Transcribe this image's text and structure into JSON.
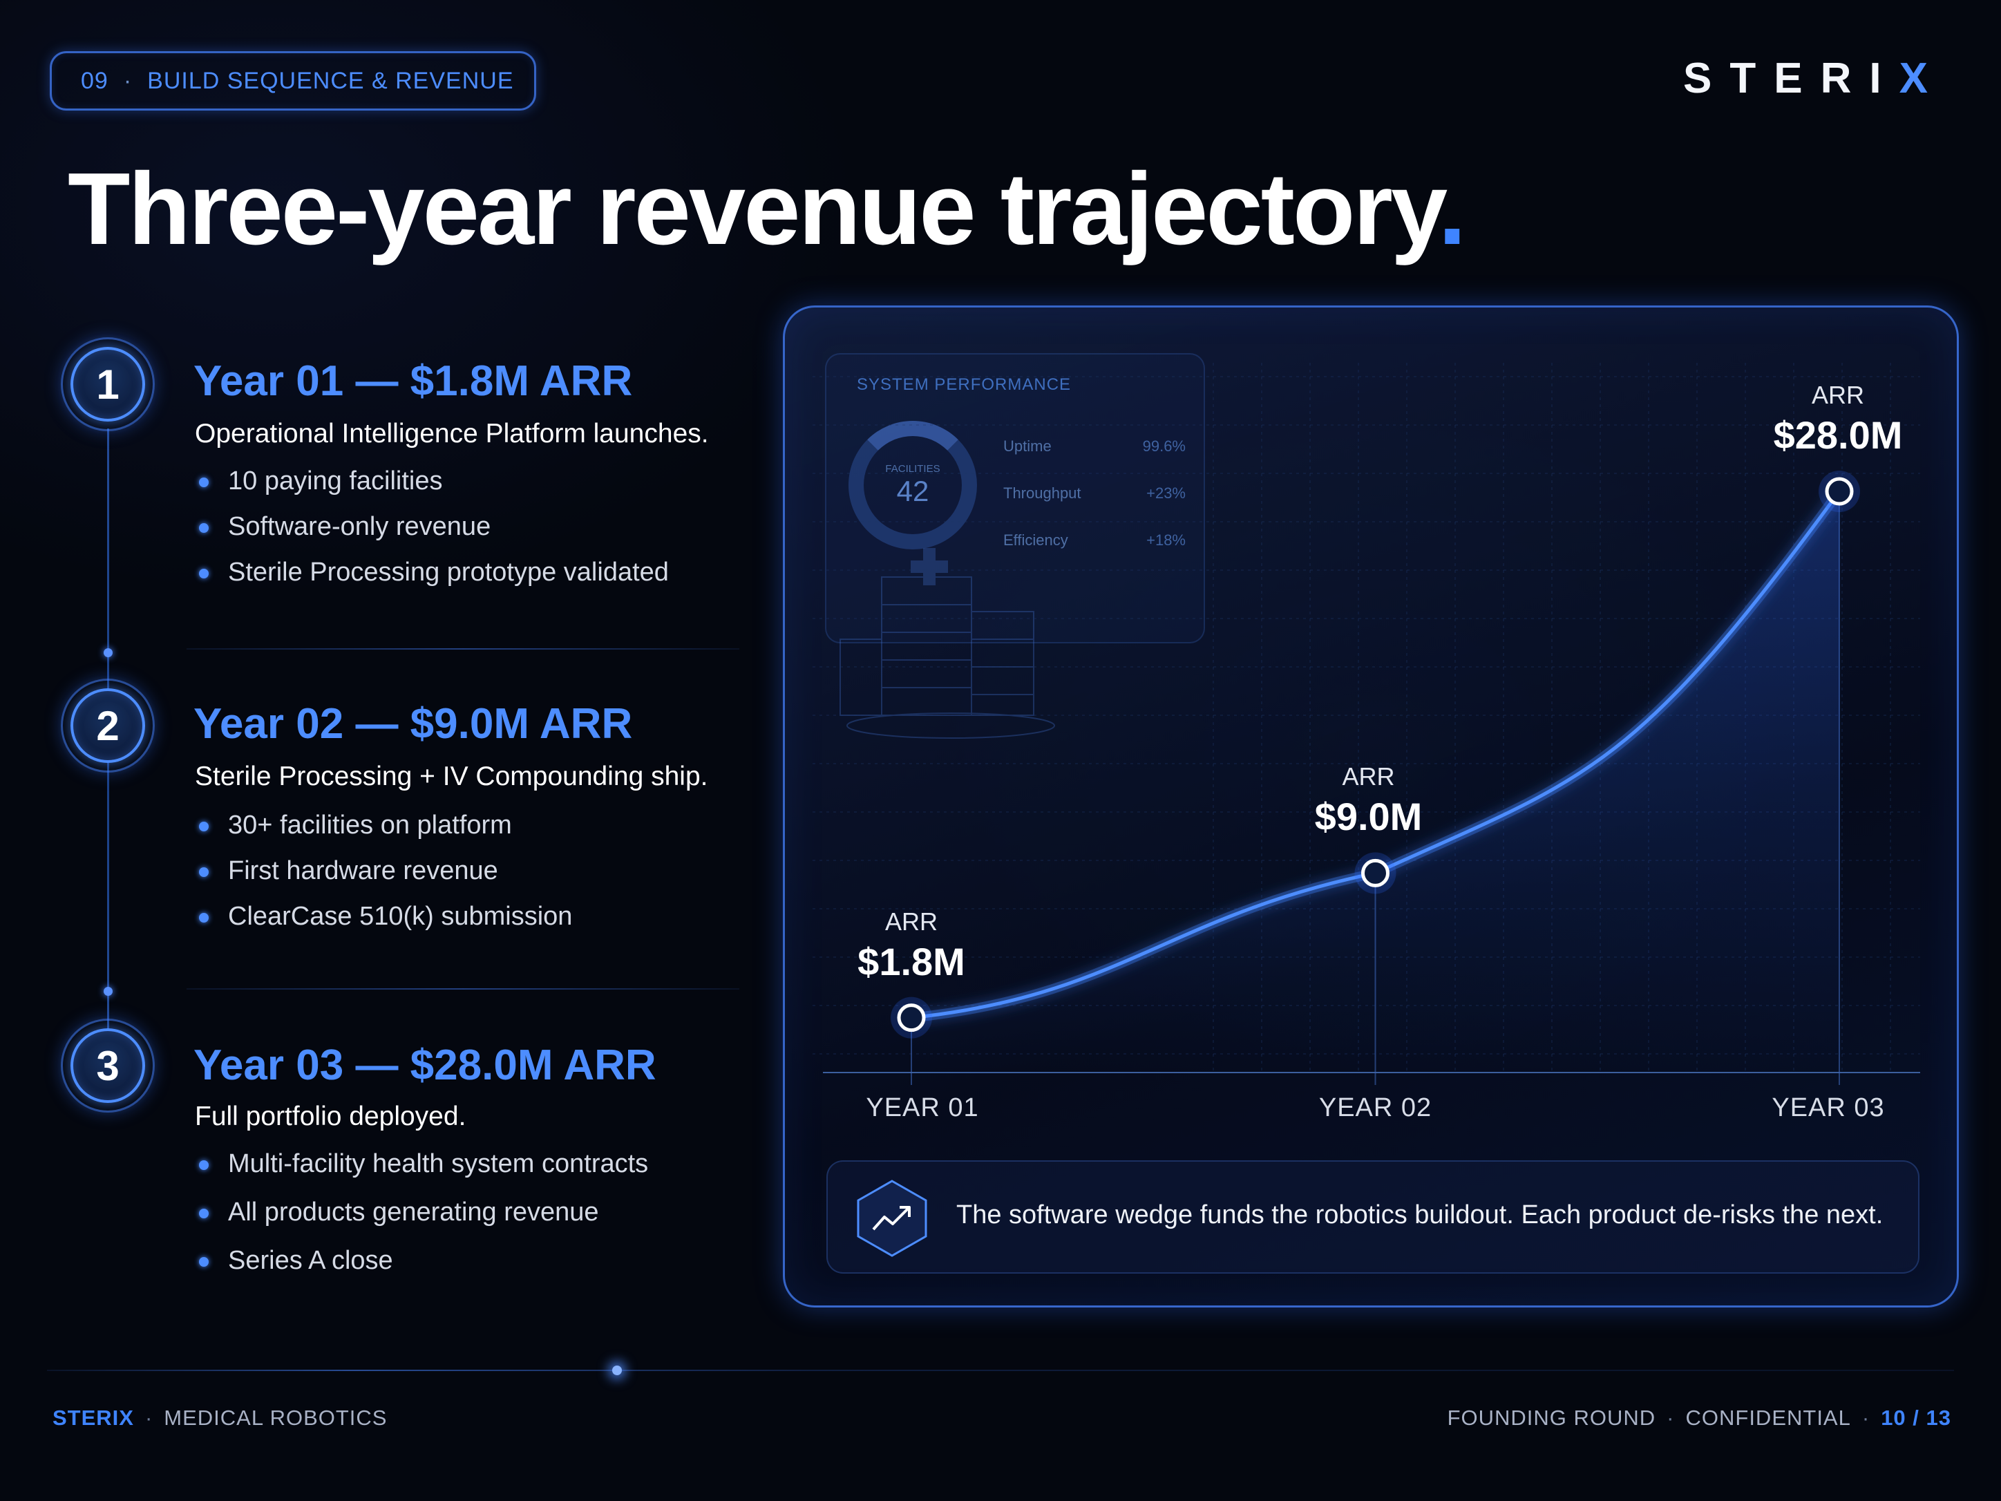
{
  "header": {
    "section_number": "09",
    "section_title": "BUILD SEQUENCE & REVENUE",
    "logo_text": "STERI",
    "logo_accent": "X",
    "title": "Three-year revenue trajectory",
    "title_accent": "."
  },
  "milestones": [
    {
      "number": "1",
      "title": "Year 01 — $1.8M ARR",
      "subtitle": "Operational Intelligence Platform launches.",
      "bullets": [
        "10 paying facilities",
        "Software-only revenue",
        "Sterile Processing prototype validated"
      ]
    },
    {
      "number": "2",
      "title": "Year 02 — $9.0M ARR",
      "subtitle": "Sterile Processing + IV Compounding ship.",
      "bullets": [
        "30+ facilities on platform",
        "First hardware revenue",
        "ClearCase 510(k) submission"
      ]
    },
    {
      "number": "3",
      "title": "Year 03 — $28.0M ARR",
      "subtitle": "Full portfolio deployed.",
      "bullets": [
        "Multi-facility health system contracts",
        "All products generating revenue",
        "Series A close"
      ]
    }
  ],
  "background_card": {
    "title": "SYSTEM PERFORMANCE",
    "ring_label": "FACILITIES",
    "ring_value": "42",
    "rows": [
      {
        "label": "Uptime",
        "value": "99.6%"
      },
      {
        "label": "Throughput",
        "value": "+23%"
      },
      {
        "label": "Efficiency",
        "value": "+18%"
      }
    ]
  },
  "chart_data": {
    "type": "line",
    "categories": [
      "YEAR 01",
      "YEAR 02",
      "YEAR 03"
    ],
    "values": [
      1.8,
      9.0,
      28.0
    ],
    "unit": "$M",
    "point_caption": "ARR",
    "point_labels": [
      "$1.8M",
      "$9.0M",
      "$28.0M"
    ],
    "ylim": [
      0,
      30
    ],
    "grid": true,
    "line_color": "#4d8dff"
  },
  "insight": {
    "icon": "trend-up-icon",
    "text": "The software wedge funds the robotics buildout. Each product de-risks the next."
  },
  "footer": {
    "brand": "STERIX",
    "tagline": "MEDICAL ROBOTICS",
    "round": "FOUNDING ROUND",
    "confidentiality": "CONFIDENTIAL",
    "page": "10 / 13"
  },
  "colors": {
    "accent": "#4d8dff",
    "background": "#04070f"
  }
}
